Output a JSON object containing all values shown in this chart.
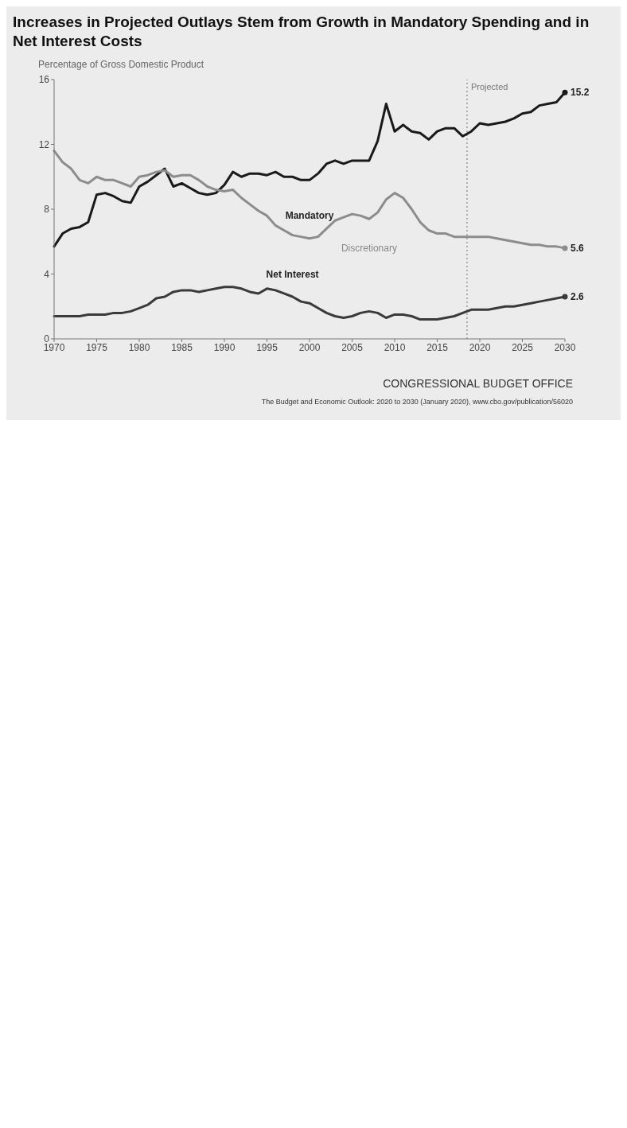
{
  "chart_data": {
    "type": "line",
    "title": "Increases in Projected Outlays Stem from Growth in Mandatory Spending and in Net Interest Costs",
    "ylabel": "Percentage of Gross Domestic Product",
    "x": [
      1970,
      1971,
      1972,
      1973,
      1974,
      1975,
      1976,
      1977,
      1978,
      1979,
      1980,
      1981,
      1982,
      1983,
      1984,
      1985,
      1986,
      1987,
      1988,
      1989,
      1990,
      1991,
      1992,
      1993,
      1994,
      1995,
      1996,
      1997,
      1998,
      1999,
      2000,
      2001,
      2002,
      2003,
      2004,
      2005,
      2006,
      2007,
      2008,
      2009,
      2010,
      2011,
      2012,
      2013,
      2014,
      2015,
      2016,
      2017,
      2018,
      2019,
      2020,
      2021,
      2022,
      2023,
      2024,
      2025,
      2026,
      2027,
      2028,
      2029,
      2030
    ],
    "series": [
      {
        "name": "Mandatory",
        "color": "#1a1a1a",
        "values": [
          5.7,
          6.5,
          6.8,
          6.9,
          7.2,
          8.9,
          9.0,
          8.8,
          8.5,
          8.4,
          9.4,
          9.7,
          10.1,
          10.5,
          9.4,
          9.6,
          9.3,
          9.0,
          8.9,
          9.0,
          9.5,
          10.3,
          10.0,
          10.2,
          10.2,
          10.1,
          10.3,
          10.0,
          10.0,
          9.8,
          9.8,
          10.2,
          10.8,
          11.0,
          10.8,
          11.0,
          11.0,
          11.0,
          12.2,
          14.5,
          12.8,
          13.2,
          12.8,
          12.7,
          12.3,
          12.8,
          13.0,
          13.0,
          12.5,
          12.8,
          13.3,
          13.2,
          13.3,
          13.4,
          13.6,
          13.9,
          14.0,
          14.4,
          14.5,
          14.6,
          15.2
        ],
        "value_labels": [
          null,
          null,
          null,
          null,
          null,
          null,
          null,
          null,
          null,
          null,
          null,
          null,
          null,
          null,
          null,
          null,
          null,
          null,
          null,
          null,
          null,
          null,
          null,
          null,
          null,
          null,
          null,
          null,
          null,
          null,
          null,
          null,
          null,
          null,
          null,
          null,
          null,
          null,
          null,
          null,
          null,
          null,
          null,
          null,
          null,
          null,
          null,
          null,
          null,
          null,
          null,
          null,
          null,
          null,
          null,
          null,
          null,
          null,
          null,
          null,
          "15.2"
        ]
      },
      {
        "name": "Discretionary",
        "color": "#8c8c8c",
        "values": [
          11.6,
          10.9,
          10.5,
          9.8,
          9.6,
          10.0,
          9.8,
          9.8,
          9.6,
          9.4,
          10.0,
          10.1,
          10.3,
          10.4,
          10.0,
          10.1,
          10.1,
          9.8,
          9.4,
          9.2,
          9.1,
          9.2,
          8.7,
          8.3,
          7.9,
          7.6,
          7.0,
          6.7,
          6.4,
          6.3,
          6.2,
          6.3,
          6.8,
          7.3,
          7.5,
          7.7,
          7.6,
          7.4,
          7.8,
          8.6,
          9.0,
          8.7,
          8.0,
          7.2,
          6.7,
          6.5,
          6.5,
          6.3,
          6.3,
          6.3,
          6.3,
          6.3,
          6.2,
          6.1,
          6.0,
          5.9,
          5.8,
          5.8,
          5.7,
          5.7,
          5.6
        ],
        "value_labels": [
          null,
          null,
          null,
          null,
          null,
          null,
          null,
          null,
          null,
          null,
          null,
          null,
          null,
          null,
          null,
          null,
          null,
          null,
          null,
          null,
          null,
          null,
          null,
          null,
          null,
          null,
          null,
          null,
          null,
          null,
          null,
          null,
          null,
          null,
          null,
          null,
          null,
          null,
          null,
          null,
          null,
          null,
          null,
          null,
          null,
          null,
          null,
          null,
          null,
          null,
          null,
          null,
          null,
          null,
          null,
          null,
          null,
          null,
          null,
          null,
          "5.6"
        ]
      },
      {
        "name": "Net Interest",
        "color": "#3a3a3a",
        "values": [
          1.4,
          1.4,
          1.4,
          1.4,
          1.5,
          1.5,
          1.5,
          1.6,
          1.6,
          1.7,
          1.9,
          2.1,
          2.5,
          2.6,
          2.9,
          3.0,
          3.0,
          2.9,
          3.0,
          3.1,
          3.2,
          3.2,
          3.1,
          2.9,
          2.8,
          3.1,
          3.0,
          2.8,
          2.6,
          2.3,
          2.2,
          1.9,
          1.6,
          1.4,
          1.3,
          1.4,
          1.6,
          1.7,
          1.6,
          1.3,
          1.5,
          1.5,
          1.4,
          1.2,
          1.2,
          1.2,
          1.3,
          1.4,
          1.6,
          1.8,
          1.8,
          1.8,
          1.9,
          2.0,
          2.0,
          2.1,
          2.2,
          2.3,
          2.4,
          2.5,
          2.6
        ],
        "value_labels": [
          null,
          null,
          null,
          null,
          null,
          null,
          null,
          null,
          null,
          null,
          null,
          null,
          null,
          null,
          null,
          null,
          null,
          null,
          null,
          null,
          null,
          null,
          null,
          null,
          null,
          null,
          null,
          null,
          null,
          null,
          null,
          null,
          null,
          null,
          null,
          null,
          null,
          null,
          null,
          null,
          null,
          null,
          null,
          null,
          null,
          null,
          null,
          null,
          null,
          null,
          null,
          null,
          null,
          null,
          null,
          null,
          null,
          null,
          null,
          null,
          "2.6"
        ]
      }
    ],
    "xlim": [
      1970,
      2030
    ],
    "xticks": [
      1970,
      1975,
      1980,
      1985,
      1990,
      1995,
      2000,
      2005,
      2010,
      2015,
      2020,
      2025,
      2030
    ],
    "ylim": [
      0,
      16
    ],
    "yticks": [
      0,
      4,
      8,
      12,
      16
    ],
    "grid": false,
    "legend": false,
    "line_style": "solid",
    "ref_lines": [
      {
        "axis": "x",
        "value": 2018.5,
        "label": "Projected",
        "color": "#9a9a9a",
        "line_style": "dotted"
      }
    ],
    "annotations": [
      "CONGRESSIONAL BUDGET OFFICE",
      "The Budget and Economic Outlook: 2020 to 2030 (January 2020), www.cbo.gov/publication/56020"
    ]
  }
}
